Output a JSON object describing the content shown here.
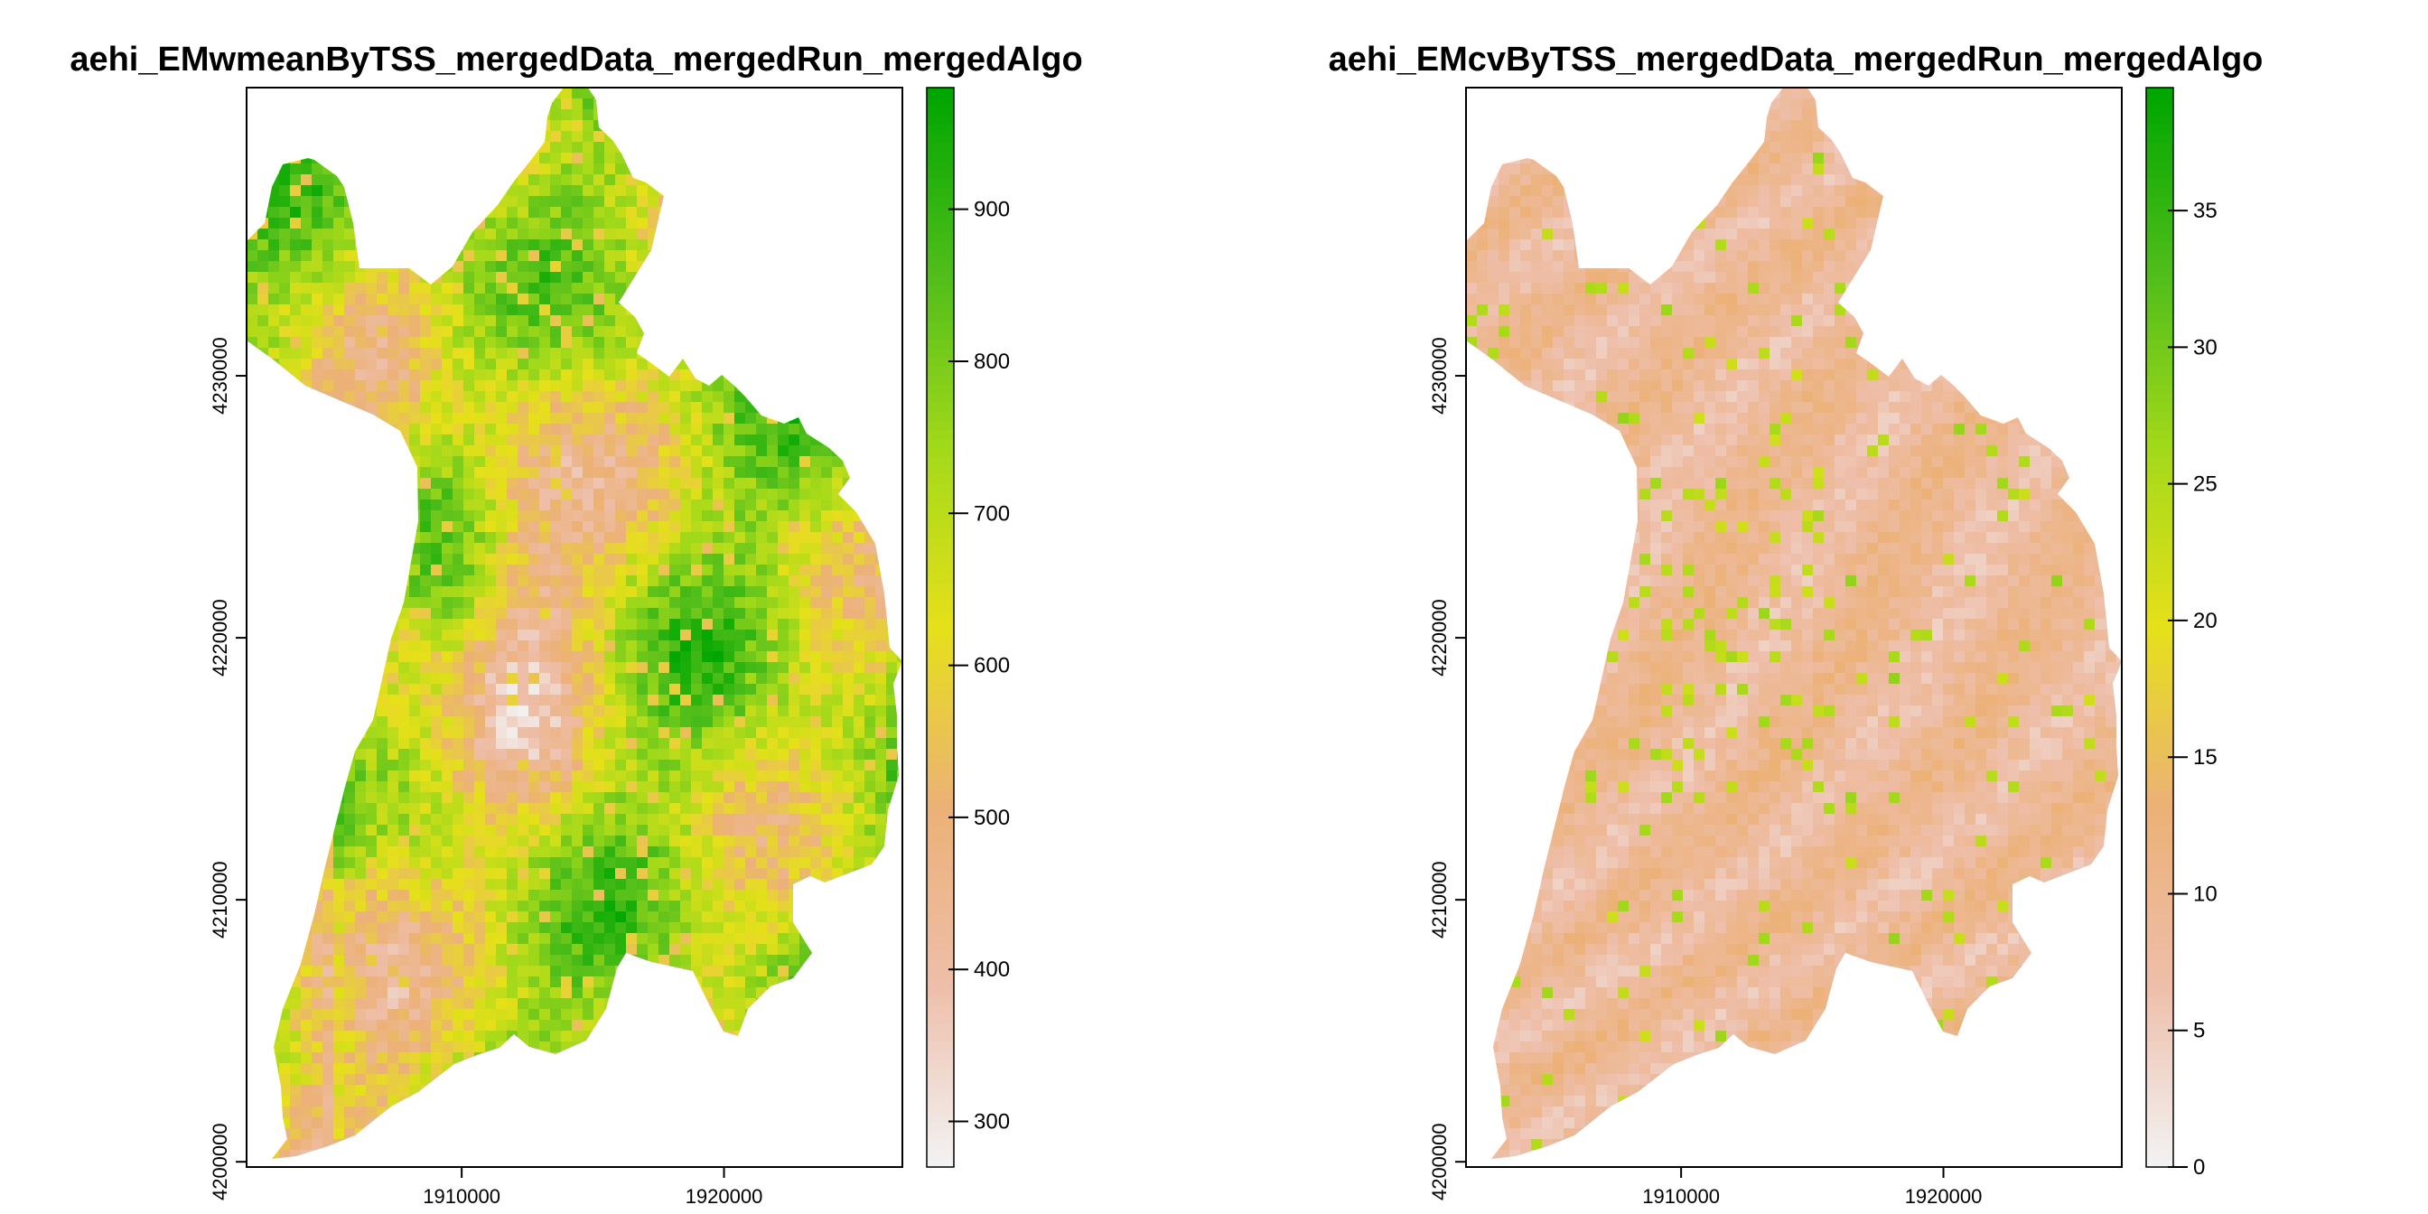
{
  "chart_data": [
    {
      "type": "heatmap",
      "title": "aehi_EMwmeanByTSS_mergedData_mergedRun_mergedAlgo",
      "xlabel": "",
      "ylabel": "",
      "xlim": [
        1901800,
        1926800
      ],
      "ylim": [
        4199800,
        4241000
      ],
      "x_ticks": [
        {
          "value": 1910000,
          "label": "1910000"
        },
        {
          "value": 1920000,
          "label": "1920000"
        }
      ],
      "y_ticks": [
        {
          "value": 4200000,
          "label": "4200000"
        },
        {
          "value": 4210000,
          "label": "4210000"
        },
        {
          "value": 4220000,
          "label": "4220000"
        },
        {
          "value": 4230000,
          "label": "4230000"
        }
      ],
      "legend": {
        "range": [
          270,
          980
        ],
        "ticks": [
          300,
          400,
          500,
          600,
          700,
          800,
          900
        ],
        "labels": [
          "300",
          "400",
          "500",
          "600",
          "700",
          "800",
          "900"
        ],
        "colors": [
          "#f2f2f2",
          "#eebea9",
          "#ecb176",
          "#e6e01a",
          "#a3d91a",
          "#4fbd1a",
          "#00a600"
        ]
      },
      "raster_style": "wmean"
    },
    {
      "type": "heatmap",
      "title": "aehi_EMcvByTSS_mergedData_mergedRun_mergedAlgo",
      "xlabel": "",
      "ylabel": "",
      "xlim": [
        1901800,
        1926800
      ],
      "ylim": [
        4199800,
        4241000
      ],
      "x_ticks": [
        {
          "value": 1910000,
          "label": "1910000"
        },
        {
          "value": 1920000,
          "label": "1920000"
        }
      ],
      "y_ticks": [
        {
          "value": 4200000,
          "label": "4200000"
        },
        {
          "value": 4210000,
          "label": "4210000"
        },
        {
          "value": 4220000,
          "label": "4220000"
        },
        {
          "value": 4230000,
          "label": "4230000"
        }
      ],
      "legend": {
        "range": [
          0,
          39.5
        ],
        "ticks": [
          0,
          5,
          10,
          15,
          20,
          25,
          30,
          35
        ],
        "labels": [
          "0",
          "5",
          "10",
          "15",
          "20",
          "25",
          "30",
          "35"
        ],
        "colors": [
          "#f2f2f2",
          "#eebea9",
          "#ecb176",
          "#e6e01a",
          "#a3d91a",
          "#4fbd1a",
          "#00a600"
        ]
      },
      "raster_style": "cv"
    }
  ]
}
